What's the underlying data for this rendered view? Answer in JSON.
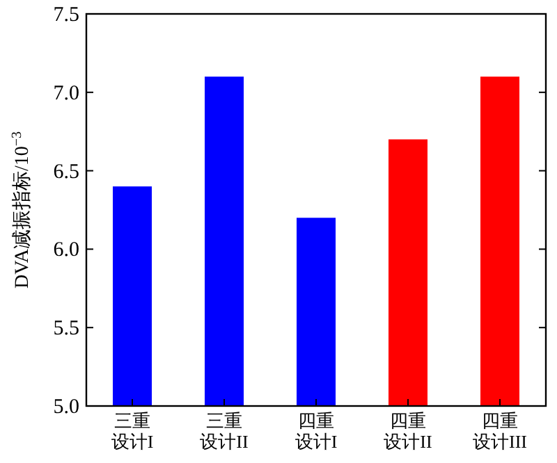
{
  "chart_data": {
    "type": "bar",
    "ylabel": "DVA减振指标/10$^{−3}$",
    "categories": [
      "三重设计I",
      "三重设计II",
      "四重设计I",
      "四重设计II",
      "四重设计III"
    ],
    "values": [
      6.4,
      7.1,
      6.2,
      6.7,
      7.1
    ],
    "colors": [
      "#0000ff",
      "#0000ff",
      "#0000ff",
      "#ff0000",
      "#ff0000"
    ],
    "ylim": [
      5.0,
      7.5
    ],
    "yticks": [
      {
        "value": 5.0,
        "label": "5.0"
      },
      {
        "value": 5.5,
        "label": "5.5"
      },
      {
        "value": 6.0,
        "label": "6.0"
      },
      {
        "value": 6.5,
        "label": "6.5"
      },
      {
        "value": 7.0,
        "label": "7.0"
      },
      {
        "value": 7.5,
        "label": "7.5"
      }
    ],
    "grid": false
  }
}
